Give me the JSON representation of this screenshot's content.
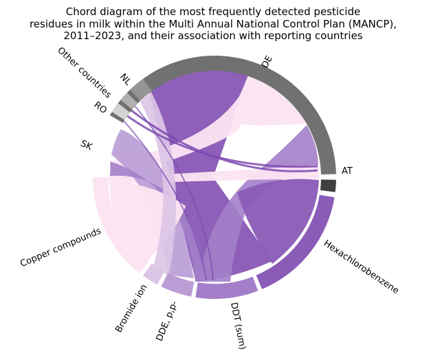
{
  "title_lines": [
    "Chord diagram of the most frequently detected pesticide",
    "residues in milk within the Multi Annual National Control Plan (MANCP),",
    "2011–2023, and their association with reporting countries"
  ],
  "segments": [
    {
      "id": "de",
      "label": "DE",
      "color": "#717171",
      "group": "country"
    },
    {
      "id": "at",
      "label": "AT",
      "color": "#404040",
      "group": "country"
    },
    {
      "id": "hcb",
      "label": "Hexachlorobenzene",
      "color": "#8a5bb7",
      "group": "pesticide"
    },
    {
      "id": "ddt",
      "label": "DDT (sum)",
      "color": "#a37fc9",
      "group": "pesticide"
    },
    {
      "id": "ddepp",
      "label": "DDE, p,p-",
      "color": "#bb9dd6",
      "group": "pesticide"
    },
    {
      "id": "bromide",
      "label": "Bromide ion",
      "color": "#dcc6e6",
      "group": "pesticide"
    },
    {
      "id": "copper",
      "label": "Copper compounds",
      "color": "#fce4f2",
      "group": "pesticide"
    },
    {
      "id": "sk",
      "label": "SK",
      "color": "#ffffff",
      "group": "country"
    },
    {
      "id": "ro",
      "label": "RO",
      "color": "#d3d3d3",
      "group": "country"
    },
    {
      "id": "other",
      "label": "Other countries",
      "color": "#b0b0b0",
      "group": "country"
    },
    {
      "id": "nl",
      "label": "NL",
      "color": "#959595",
      "group": "country"
    }
  ]
}
